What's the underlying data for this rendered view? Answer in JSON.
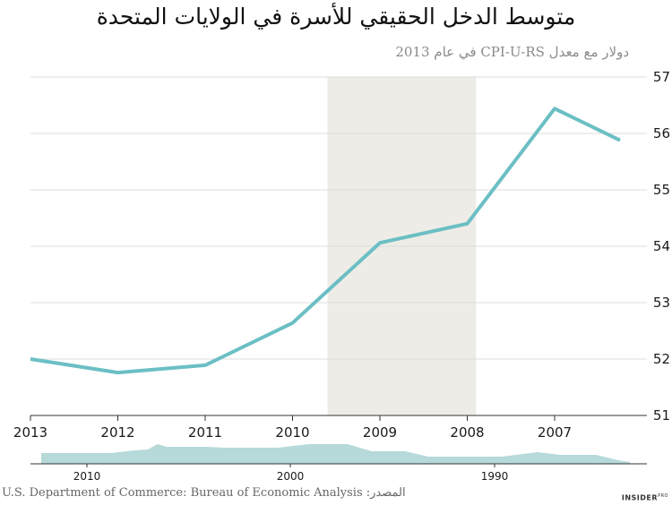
{
  "chart_data": {
    "type": "line",
    "title": "متوسط الدخل الحقيقي للأسرة في الولايات المتحدة",
    "subtitle": "دولار مع معدل CPI-U-RS في عام 2013",
    "x": [
      2013,
      2012,
      2011,
      2010,
      2009,
      2008,
      2007,
      2006
    ],
    "y": [
      52.0,
      51.76,
      51.89,
      52.64,
      54.06,
      54.4,
      56.44,
      55.69
    ],
    "x_ticks": [
      "2013",
      "2012",
      "2011",
      "2010",
      "2009",
      "2008",
      "2007"
    ],
    "y_ticks": [
      "51",
      "52",
      "53",
      "54",
      "55",
      "56",
      "57"
    ],
    "ylim": [
      51,
      57
    ],
    "x_reversed": true,
    "grid": "horizontal",
    "line_color": "#6bbfc4",
    "recession_band": {
      "from": 2009.6,
      "to": 2007.9,
      "color": "#eeece7"
    },
    "navigator": {
      "x_ticks": [
        "2010",
        "2000",
        "1990"
      ],
      "fill_color": "#b6d9d9"
    }
  },
  "source": "U.S. Department of Commerce: Bureau of Economic Analysis :المصدر",
  "brand": "INSIDER",
  "brand_sup": "PRO"
}
